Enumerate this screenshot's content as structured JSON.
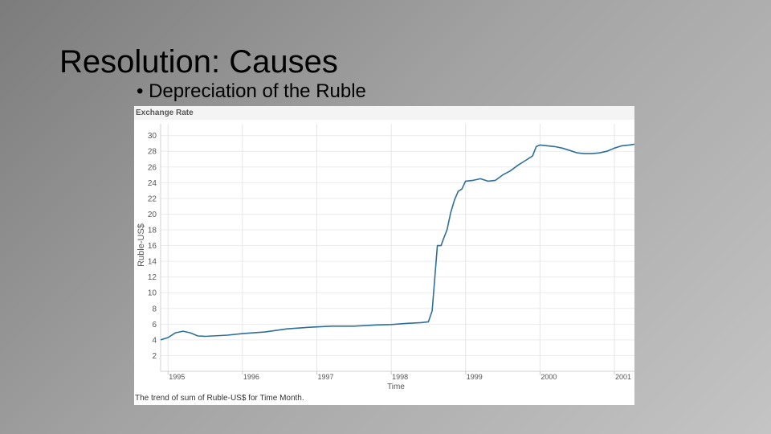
{
  "slide": {
    "title": "Resolution: Causes",
    "bullet": "• Depreciation of the Ruble"
  },
  "chart_data": {
    "type": "line",
    "title": "Exchange Rate",
    "xlabel": "Time",
    "ylabel": "Ruble-US$",
    "caption": "The trend of sum of Ruble-US$ for Time Month.",
    "x_ticks": [
      "1995",
      "1996",
      "1997",
      "1998",
      "1999",
      "2000",
      "2001"
    ],
    "y_ticks": [
      2,
      4,
      6,
      8,
      10,
      12,
      14,
      16,
      18,
      20,
      22,
      24,
      26,
      28,
      30
    ],
    "xlim": [
      1994.9,
      2001.27
    ],
    "ylim": [
      0,
      31.5
    ],
    "grid": true,
    "legend": "none",
    "line_color": "#2e6f9a",
    "series": [
      {
        "x": [
          1994.9,
          1995.0,
          1995.1,
          1995.2,
          1995.3,
          1995.4,
          1995.5,
          1995.6,
          1995.8,
          1996.0,
          1996.3,
          1996.6,
          1996.9,
          1997.2,
          1997.5,
          1997.8,
          1998.0,
          1998.2,
          1998.4,
          1998.5,
          1998.55,
          1998.62,
          1998.67,
          1998.7,
          1998.75,
          1998.8,
          1998.85,
          1998.9,
          1998.95,
          1999.0,
          1999.1,
          1999.2,
          1999.3,
          1999.4,
          1999.5,
          1999.6,
          1999.7,
          1999.8,
          1999.9,
          1999.95,
          2000.0,
          2000.1,
          2000.2,
          2000.3,
          2000.4,
          2000.5,
          2000.6,
          2000.7,
          2000.8,
          2000.9,
          2001.0,
          2001.1,
          2001.2,
          2001.27
        ],
        "values": [
          4.0,
          4.3,
          4.9,
          5.1,
          4.9,
          4.5,
          4.45,
          4.5,
          4.6,
          4.8,
          5.0,
          5.4,
          5.6,
          5.75,
          5.75,
          5.9,
          5.95,
          6.1,
          6.2,
          6.3,
          7.7,
          16.0,
          16.0,
          16.8,
          18.0,
          20.2,
          21.8,
          22.9,
          23.2,
          24.2,
          24.3,
          24.5,
          24.2,
          24.3,
          25.0,
          25.5,
          26.2,
          26.8,
          27.4,
          28.6,
          28.8,
          28.7,
          28.6,
          28.4,
          28.1,
          27.8,
          27.7,
          27.7,
          27.8,
          28.0,
          28.4,
          28.7,
          28.8,
          28.9
        ]
      }
    ]
  }
}
